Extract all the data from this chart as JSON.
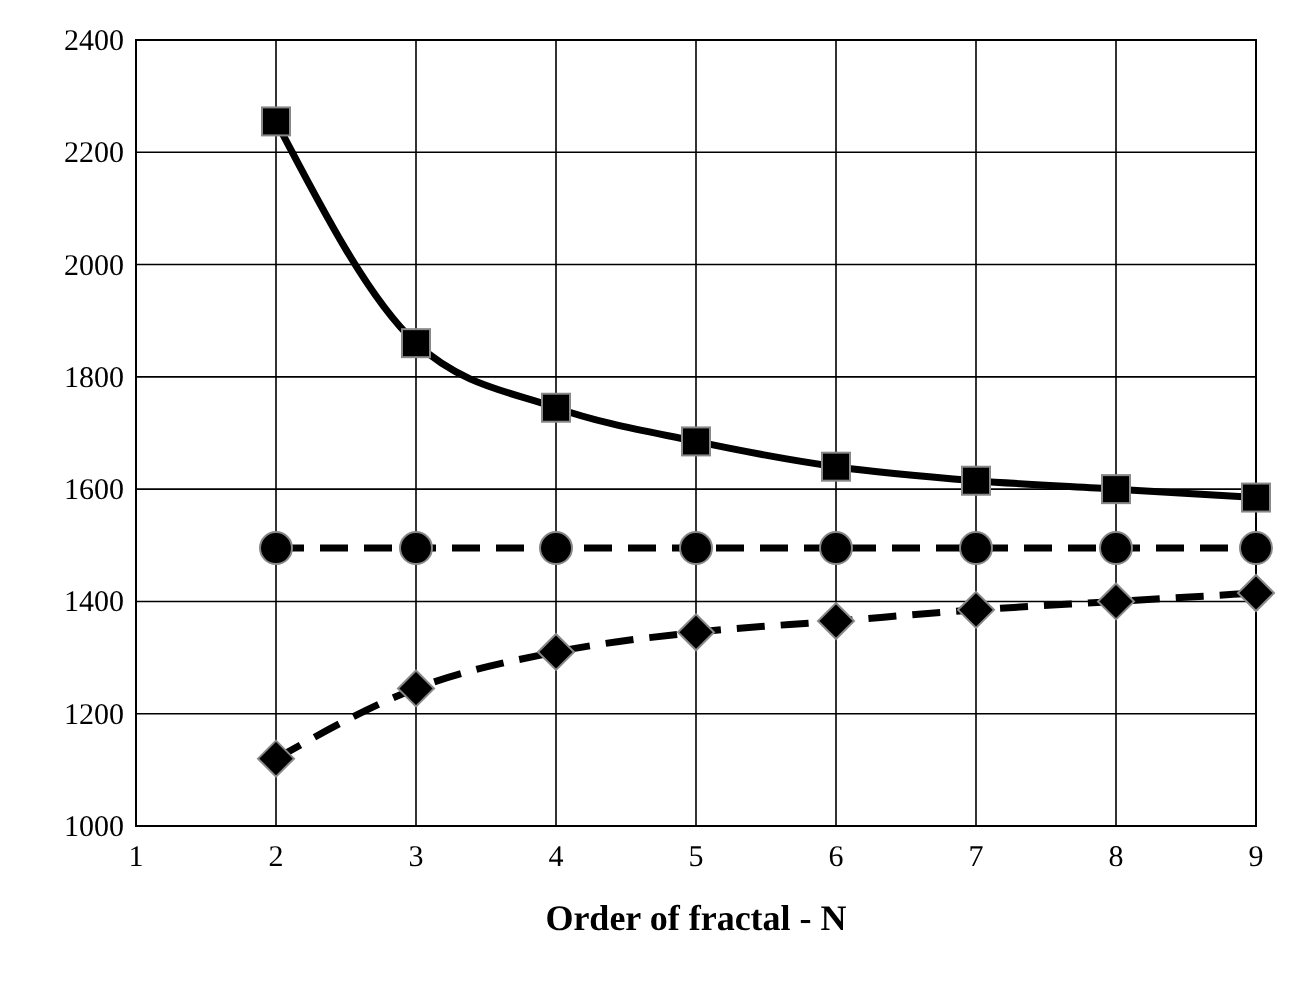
{
  "chart_data": {
    "type": "line",
    "xlabel": "Order of fractal - N",
    "x": [
      2,
      3,
      4,
      5,
      6,
      7,
      8,
      9
    ],
    "xlim": [
      1,
      9
    ],
    "xticks": [
      1,
      2,
      3,
      4,
      5,
      6,
      7,
      8,
      9
    ],
    "ylim": [
      1000,
      2400
    ],
    "yticks": [
      1000,
      1200,
      1400,
      1600,
      1800,
      2000,
      2200,
      2400
    ],
    "grid": true,
    "series": [
      {
        "color": "#000000",
        "marker": "square",
        "line_style": "solid",
        "values": [
          2255,
          1860,
          1745,
          1685,
          1640,
          1615,
          1600,
          1585
        ]
      },
      {
        "color": "#000000",
        "marker": "circle",
        "line_style": "dashed",
        "values": [
          1495,
          1495,
          1495,
          1495,
          1495,
          1495,
          1495,
          1495
        ]
      },
      {
        "color": "#000000",
        "marker": "diamond",
        "line_style": "dashed",
        "values": [
          1120,
          1245,
          1310,
          1345,
          1365,
          1385,
          1400,
          1415
        ]
      }
    ]
  }
}
